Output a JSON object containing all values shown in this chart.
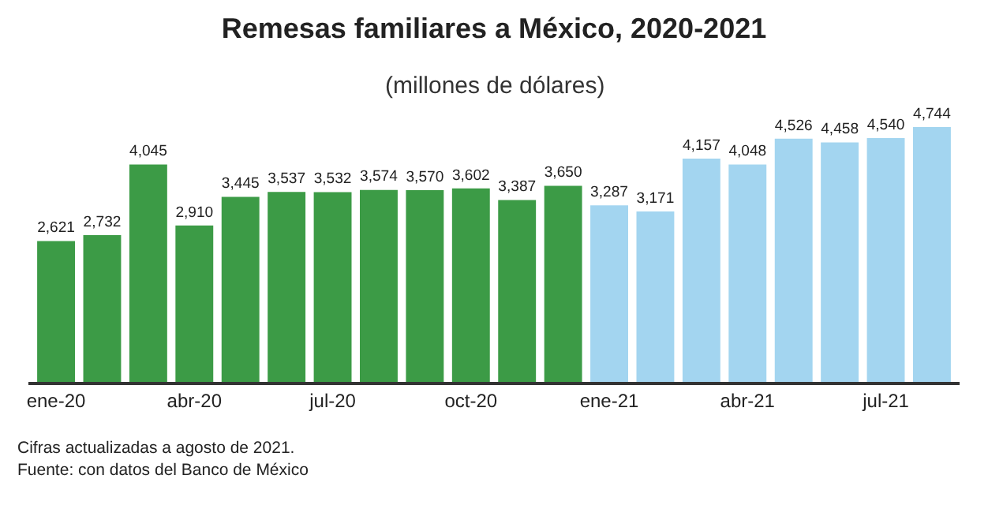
{
  "chart_data": {
    "type": "bar",
    "title": "Remesas familiares a México, 2020-2021",
    "subtitle": "(millones de dólares)",
    "categories": [
      "ene-20",
      null,
      null,
      "abr-20",
      null,
      null,
      "jul-20",
      null,
      null,
      "oct-20",
      null,
      null,
      "ene-21",
      null,
      null,
      "abr-21",
      null,
      null,
      "jul-21",
      null
    ],
    "values": [
      2621,
      2732,
      4045,
      2910,
      3445,
      3537,
      3532,
      3574,
      3570,
      3602,
      3387,
      3650,
      3287,
      3171,
      4157,
      4048,
      4526,
      4458,
      4540,
      4744
    ],
    "value_labels": [
      "2,621",
      "2,732",
      "4,045",
      "2,910",
      "3,445",
      "3,537",
      "3,532",
      "3,574",
      "3,570",
      "3,602",
      "3,387",
      "3,650",
      "3,287",
      "3,171",
      "4,157",
      "4,048",
      "4,526",
      "4,458",
      "4,540",
      "4,744"
    ],
    "colors": [
      "#3c9b46",
      "#3c9b46",
      "#3c9b46",
      "#3c9b46",
      "#3c9b46",
      "#3c9b46",
      "#3c9b46",
      "#3c9b46",
      "#3c9b46",
      "#3c9b46",
      "#3c9b46",
      "#3c9b46",
      "#a3d5f0",
      "#a3d5f0",
      "#a3d5f0",
      "#a3d5f0",
      "#a3d5f0",
      "#a3d5f0",
      "#a3d5f0",
      "#a3d5f0"
    ],
    "tick_labels": "x",
    "grid": false,
    "legend": false,
    "annotations": [
      "Cifras actualizadas a agosto de 2021.",
      "Fuente: con datos del Banco de México"
    ]
  }
}
